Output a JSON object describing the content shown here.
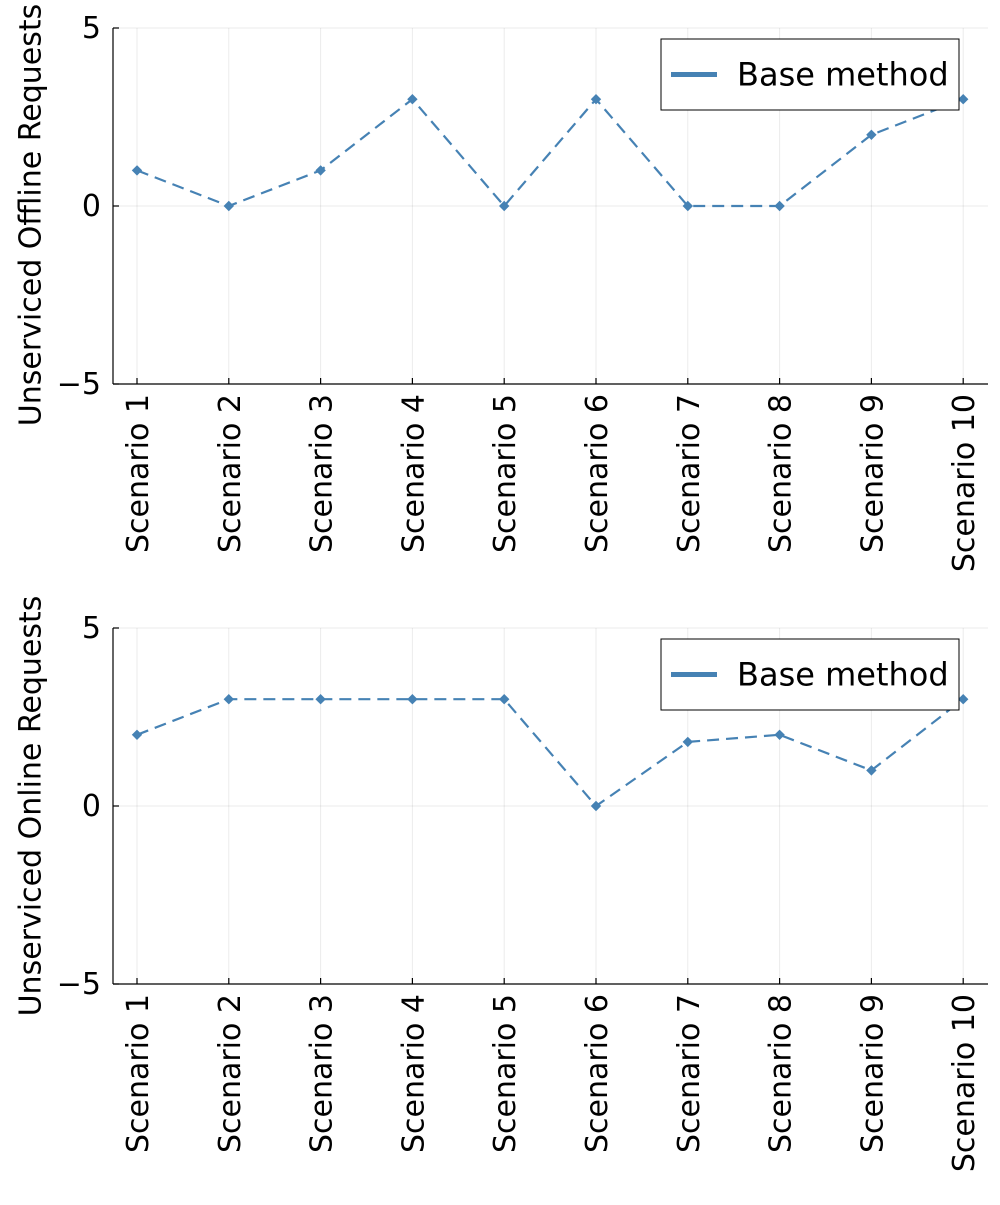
{
  "charts": [
    {
      "type": "line",
      "ylabel": "Unserviced Offline Requests",
      "categories": [
        "Scenario 1",
        "Scenario 2",
        "Scenario 3",
        "Scenario 4",
        "Scenario 5",
        "Scenario 6",
        "Scenario 7",
        "Scenario 8",
        "Scenario 9",
        "Scenario 10"
      ],
      "ylim": [
        -5,
        5
      ],
      "yticks": [
        -5,
        0,
        5
      ],
      "ytick_labels": [
        "−5",
        "0",
        "5"
      ],
      "series": [
        {
          "name": "Base method",
          "values": [
            1,
            0,
            1,
            3,
            0,
            3,
            0,
            0,
            2,
            3
          ]
        }
      ],
      "grid": true,
      "legend_position": "top-right",
      "line_style": "dashed",
      "marker": "diamond",
      "color": "#4682b4"
    },
    {
      "type": "line",
      "ylabel": "Unserviced Online Requests",
      "categories": [
        "Scenario 1",
        "Scenario 2",
        "Scenario 3",
        "Scenario 4",
        "Scenario 5",
        "Scenario 6",
        "Scenario 7",
        "Scenario 8",
        "Scenario 9",
        "Scenario 10"
      ],
      "ylim": [
        -5,
        5
      ],
      "yticks": [
        -5,
        0,
        5
      ],
      "ytick_labels": [
        "−5",
        "0",
        "5"
      ],
      "series": [
        {
          "name": "Base method",
          "values": [
            2,
            3,
            3,
            3,
            3,
            0,
            1.8,
            2,
            1,
            3
          ]
        }
      ],
      "grid": true,
      "legend_position": "top-right",
      "line_style": "dashed",
      "marker": "diamond",
      "color": "#4682b4"
    }
  ]
}
